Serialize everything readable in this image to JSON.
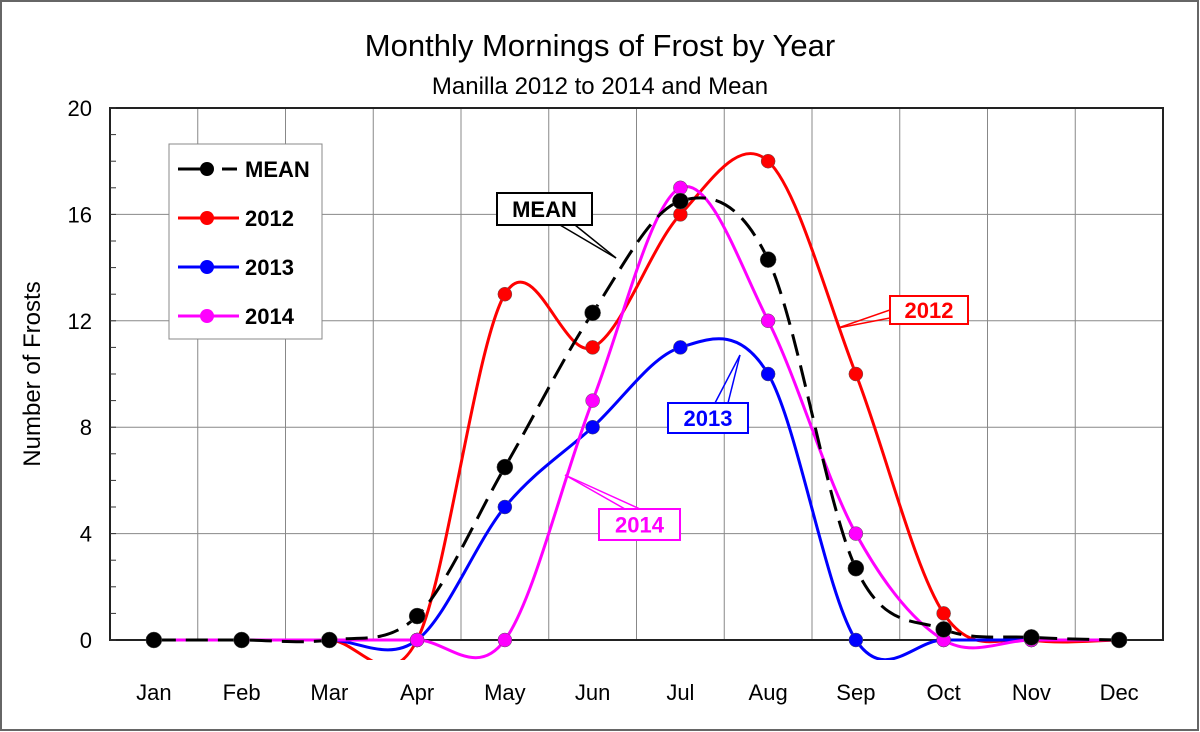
{
  "chart_data": {
    "type": "line",
    "title": "Monthly Mornings of Frost by Year",
    "subtitle": "Manilla 2012 to 2014 and Mean",
    "xlabel": "",
    "ylabel": "Number of Frosts",
    "categories": [
      "Jan",
      "Feb",
      "Mar",
      "Apr",
      "May",
      "Jun",
      "Jul",
      "Aug",
      "Sep",
      "Oct",
      "Nov",
      "Dec"
    ],
    "ylim": [
      0,
      20
    ],
    "yticks": [
      0,
      4,
      8,
      12,
      16,
      20
    ],
    "grid": true,
    "legend_position": "top-left",
    "series": [
      {
        "name": "MEAN",
        "color": "#000000",
        "dashed": true,
        "values": [
          0,
          0,
          0,
          0.9,
          6.5,
          12.3,
          16.5,
          14.3,
          2.7,
          0.4,
          0.1,
          0
        ]
      },
      {
        "name": "2012",
        "color": "#ff0000",
        "dashed": false,
        "values": [
          0,
          0,
          0,
          0,
          13,
          11,
          16,
          18,
          10,
          1,
          0,
          0
        ]
      },
      {
        "name": "2013",
        "color": "#0000ff",
        "dashed": false,
        "values": [
          0,
          0,
          0,
          0,
          5,
          8,
          11,
          10,
          0,
          0,
          0,
          0
        ]
      },
      {
        "name": "2014",
        "color": "#ff00ff",
        "dashed": false,
        "values": [
          0,
          0,
          0,
          0,
          0,
          9,
          17,
          12,
          4,
          0,
          0,
          0
        ]
      }
    ],
    "annotations": [
      {
        "text": "MEAN",
        "color": "#000000"
      },
      {
        "text": "2012",
        "color": "#ff0000"
      },
      {
        "text": "2013",
        "color": "#0000ff"
      },
      {
        "text": "2014",
        "color": "#ff00ff"
      }
    ]
  }
}
